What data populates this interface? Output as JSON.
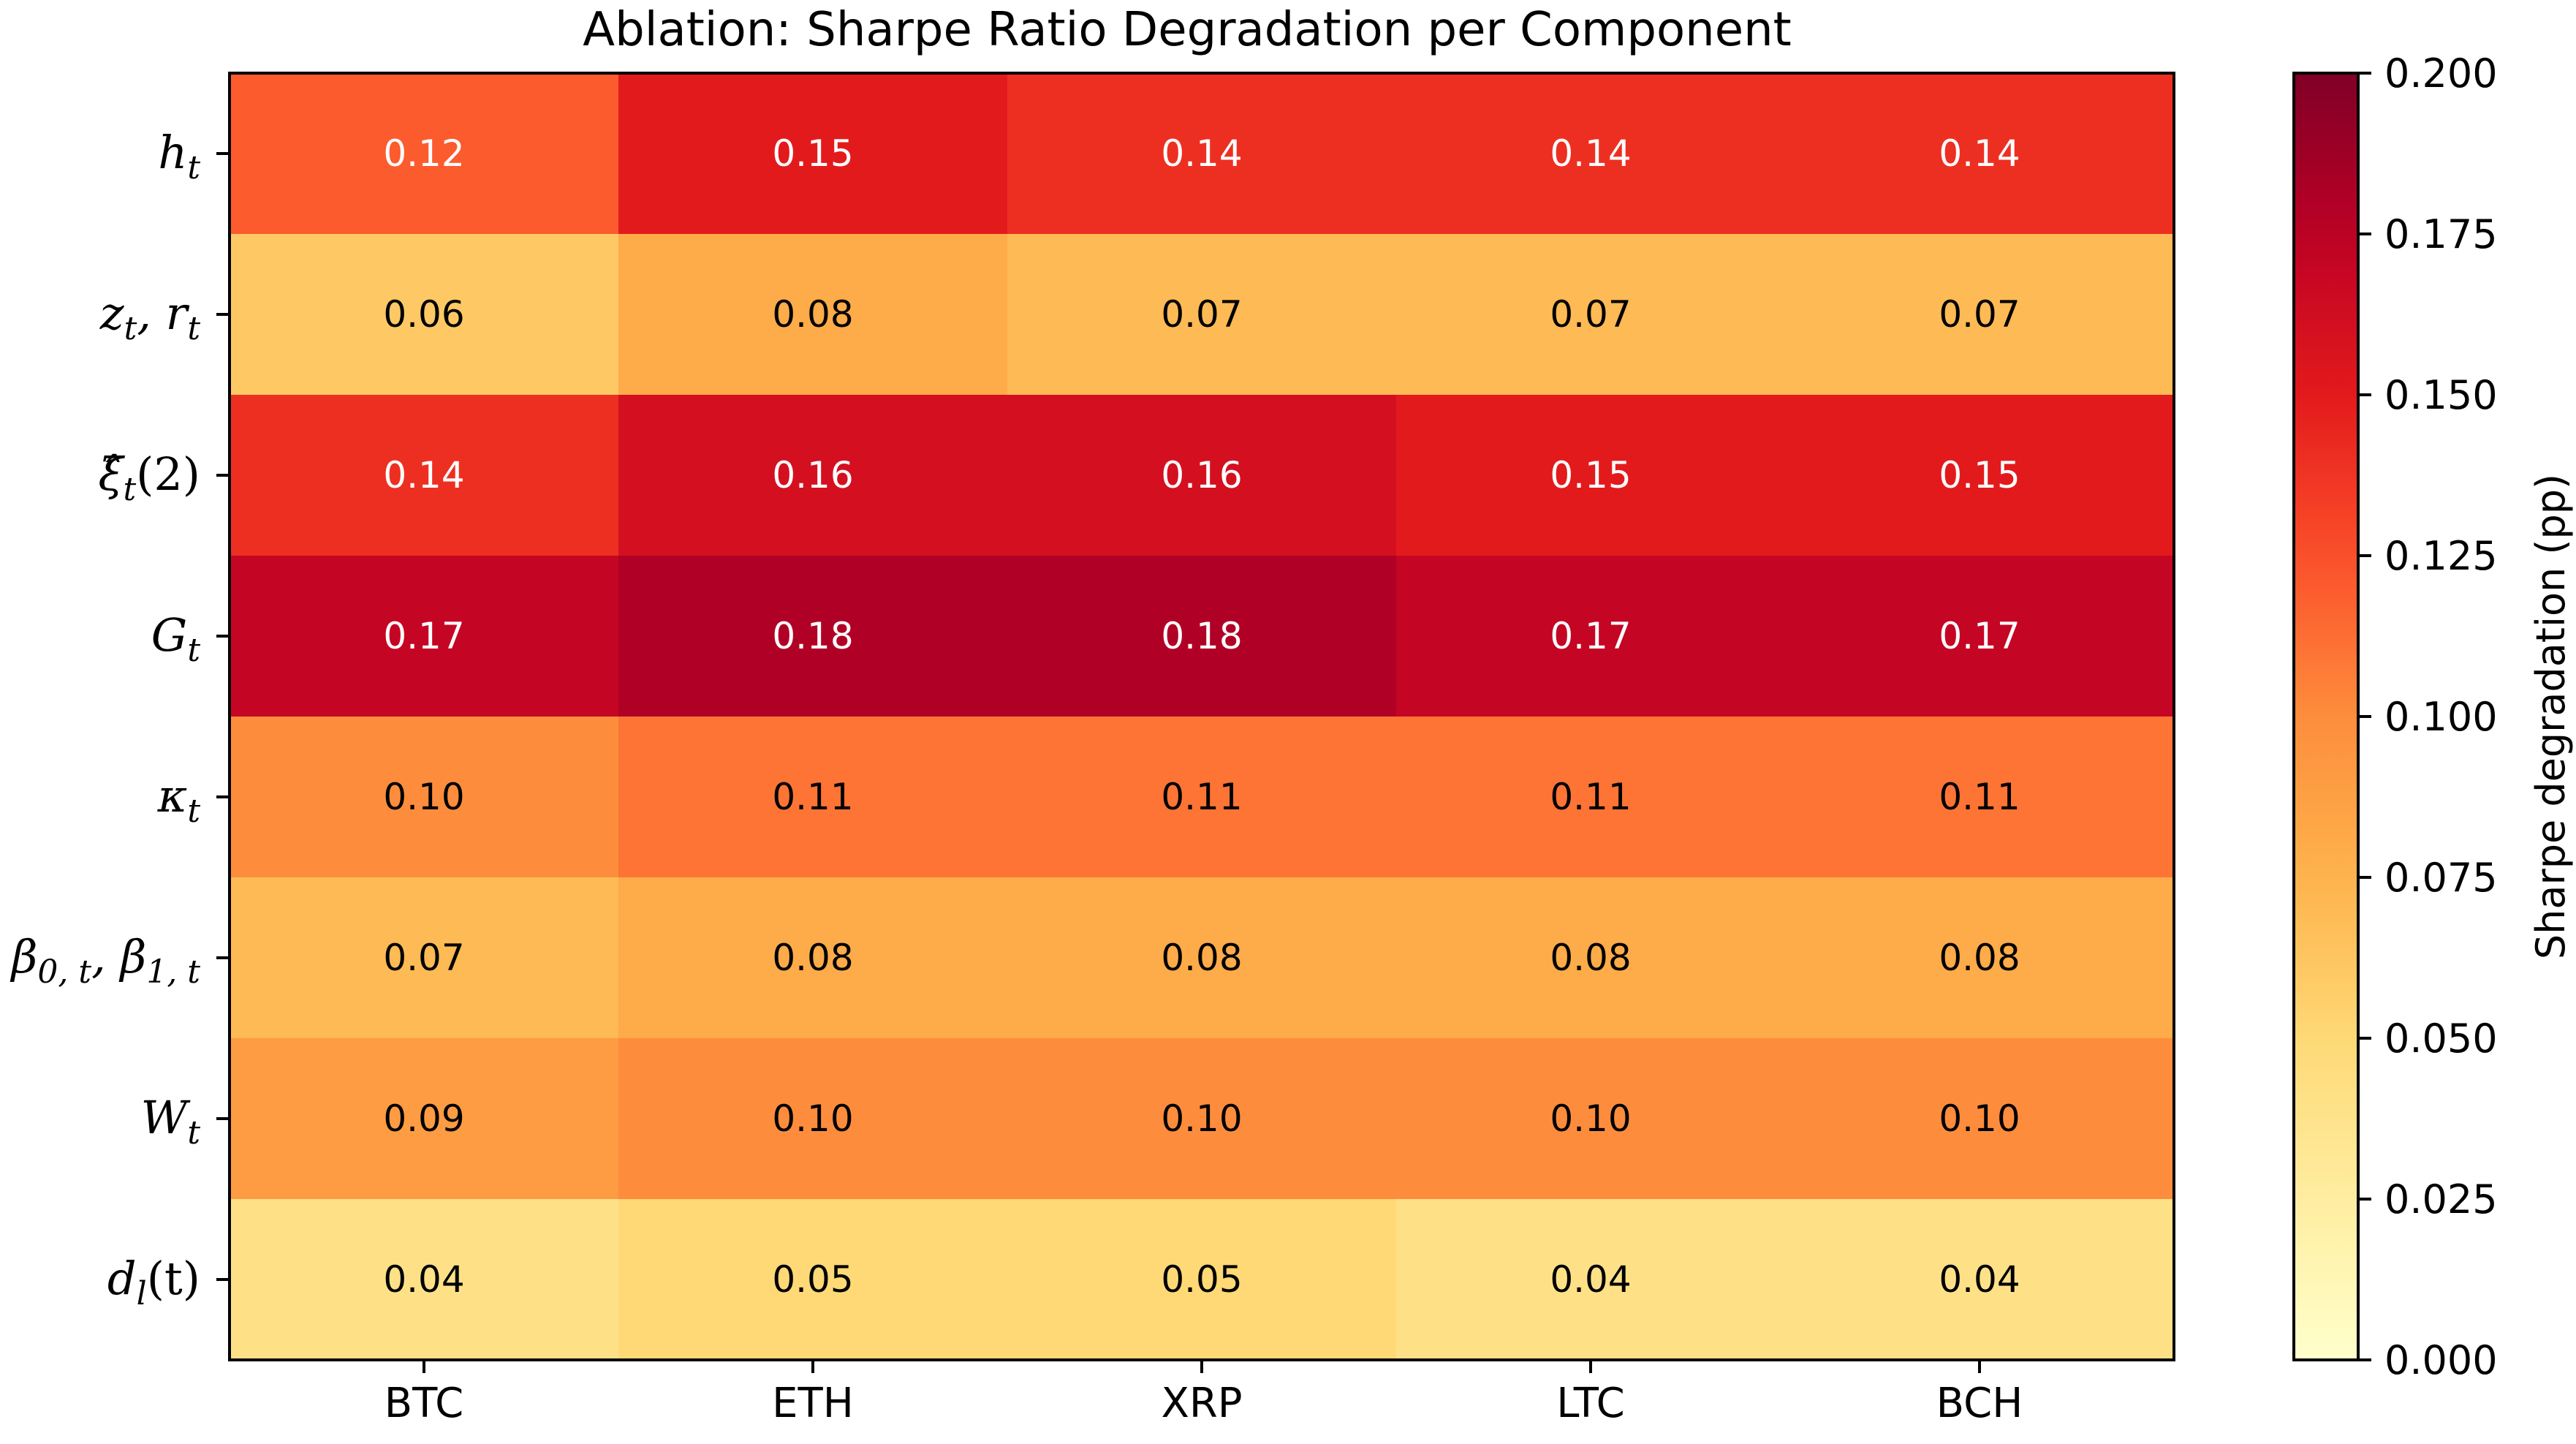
{
  "chart_data": {
    "type": "heatmap",
    "title": "Ablation: Sharpe Ratio Degradation per Component",
    "xlabel": "",
    "ylabel": "",
    "columns": [
      "BTC",
      "ETH",
      "XRP",
      "LTC",
      "BCH"
    ],
    "rows": [
      {
        "base": "h",
        "sub": "t",
        "tail": ""
      },
      {
        "base": "z",
        "sub": "t",
        "tail": ", r",
        "sub2": "t"
      },
      {
        "base": "ξ̂",
        "sub": "t",
        "tail": "(2)"
      },
      {
        "base": "G",
        "sub": "t",
        "tail": ""
      },
      {
        "base": "κ",
        "sub": "t",
        "tail": ""
      },
      {
        "base": "β",
        "sub": "0, t",
        "tail": ", β",
        "sub2": "1, t"
      },
      {
        "base": "W",
        "sub": "t",
        "tail": ""
      },
      {
        "base": "d",
        "sub": "l",
        "tail": "(t)"
      }
    ],
    "values": [
      [
        0.12,
        0.15,
        0.14,
        0.14,
        0.14
      ],
      [
        0.06,
        0.08,
        0.07,
        0.07,
        0.07
      ],
      [
        0.14,
        0.16,
        0.16,
        0.15,
        0.15
      ],
      [
        0.17,
        0.18,
        0.18,
        0.17,
        0.17
      ],
      [
        0.1,
        0.11,
        0.11,
        0.11,
        0.11
      ],
      [
        0.07,
        0.08,
        0.08,
        0.08,
        0.08
      ],
      [
        0.09,
        0.1,
        0.1,
        0.1,
        0.1
      ],
      [
        0.04,
        0.05,
        0.05,
        0.04,
        0.04
      ]
    ],
    "value_format": "0.00",
    "colormap": "YlOrRd",
    "vmin": 0.0,
    "vmax": 0.2,
    "colorbar": {
      "label": "Sharpe degradation (pp)",
      "ticks": [
        "0.000",
        "0.025",
        "0.050",
        "0.075",
        "0.100",
        "0.125",
        "0.150",
        "0.175",
        "0.200"
      ]
    },
    "grid": false,
    "legend": "none"
  }
}
